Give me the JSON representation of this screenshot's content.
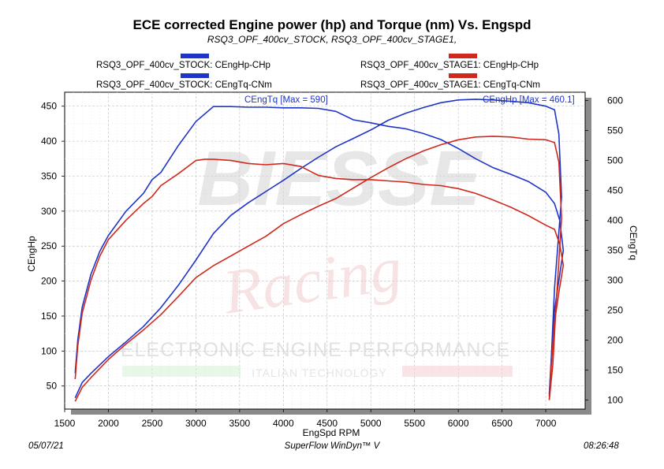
{
  "header": {
    "title": "ECE corrected Engine power (hp) and Torque (nm) Vs. Engspd",
    "subtitle": "RSQ3_OPF_400cv_STOCK, RSQ3_OPF_400cv_STAGE1,"
  },
  "legend": [
    {
      "label": "RSQ3_OPF_400cv_STOCK: CEngHp-CHp",
      "color": "#1f35c8"
    },
    {
      "label": "RSQ3_OPF_400cv_STOCK: CEngTq-CNm",
      "color": "#1f35c8"
    },
    {
      "label": "RSQ3_OPF_400cv_STAGE1: CEngHp-CHp",
      "color": "#d0281c"
    },
    {
      "label": "RSQ3_OPF_400cv_STAGE1: CEngTq-CNm",
      "color": "#d0281c"
    }
  ],
  "footer": {
    "date": "05/07/21",
    "software": "SuperFlow WinDyn™ V",
    "time": "08:26:48"
  },
  "watermark": {
    "brand": "BIESSE",
    "script": "Racing",
    "line1": "ELECTRONIC ENGINE PERFORMANCE",
    "line2": "ITALIAN TECHNOLOGY"
  },
  "chart_data": {
    "type": "line",
    "xlabel": "EngSpd RPM",
    "ylabel": "CEngHp",
    "y2label": "CEngTq",
    "xlim": [
      1500,
      7450
    ],
    "ylim": [
      17,
      470
    ],
    "y2lim": [
      85,
      614
    ],
    "xticks": [
      1500,
      2000,
      2500,
      3000,
      3500,
      4000,
      4500,
      5000,
      5500,
      6000,
      6500,
      7000
    ],
    "yticks": [
      50,
      100,
      150,
      200,
      250,
      300,
      350,
      400,
      450
    ],
    "y2ticks": [
      100,
      150,
      200,
      250,
      300,
      350,
      400,
      450,
      500,
      550,
      600
    ],
    "grid": true,
    "annotations": [
      {
        "text": "CEngTq [Max = 590]",
        "color": "#1f35c8"
      },
      {
        "text": "CEngHp [Max = 460.1]",
        "color": "#1f35c8"
      }
    ],
    "series": [
      {
        "name": "RSQ3_OPF_400cv_STOCK: CEngHp-CHp",
        "axis": "left",
        "color": "#1f35c8",
        "x": [
          1620,
          1700,
          1800,
          2000,
          2200,
          2400,
          2600,
          2800,
          3000,
          3200,
          3400,
          3600,
          3800,
          4000,
          4200,
          4400,
          4600,
          4800,
          5000,
          5200,
          5400,
          5600,
          5800,
          6000,
          6200,
          6400,
          6600,
          6800,
          7000,
          7100,
          7150,
          7180,
          7100,
          7060,
          7040
        ],
        "y": [
          33,
          55,
          68,
          92,
          113,
          135,
          162,
          194,
          230,
          268,
          294,
          312,
          328,
          344,
          361,
          377,
          392,
          404,
          416,
          430,
          440,
          448,
          455,
          459,
          460,
          459,
          457,
          455,
          450,
          445,
          410,
          320,
          190,
          80,
          35
        ]
      },
      {
        "name": "RSQ3_OPF_400cv_STOCK: CEngTq-CNm",
        "axis": "right",
        "color": "#1f35c8",
        "x": [
          1620,
          1650,
          1700,
          1800,
          1900,
          2000,
          2200,
          2400,
          2500,
          2600,
          2800,
          3000,
          3200,
          3300,
          3400,
          3600,
          3800,
          4000,
          4200,
          4400,
          4600,
          4800,
          5000,
          5200,
          5400,
          5600,
          5800,
          6000,
          6200,
          6400,
          6600,
          6800,
          7000,
          7100,
          7160,
          7200,
          7150,
          7100,
          7060,
          7040
        ],
        "y": [
          145,
          200,
          255,
          310,
          348,
          375,
          415,
          445,
          468,
          480,
          525,
          565,
          590,
          590,
          590,
          589,
          589,
          588,
          588,
          587,
          582,
          568,
          563,
          557,
          553,
          545,
          535,
          520,
          503,
          488,
          477,
          465,
          447,
          428,
          400,
          350,
          300,
          250,
          160,
          110
        ]
      },
      {
        "name": "RSQ3_OPF_400cv_STAGE1: CEngHp-CHp",
        "axis": "left",
        "color": "#d0281c",
        "x": [
          1620,
          1700,
          1800,
          2000,
          2200,
          2400,
          2600,
          2800,
          3000,
          3200,
          3400,
          3600,
          3800,
          4000,
          4200,
          4400,
          4600,
          4800,
          5000,
          5200,
          5400,
          5600,
          5800,
          6000,
          6200,
          6400,
          6600,
          6800,
          7000,
          7100,
          7150,
          7180,
          7120,
          7080,
          7040
        ],
        "y": [
          28,
          48,
          62,
          88,
          110,
          130,
          152,
          178,
          205,
          222,
          236,
          250,
          264,
          282,
          295,
          307,
          318,
          333,
          348,
          362,
          375,
          386,
          395,
          402,
          406,
          407,
          406,
          403,
          402,
          398,
          370,
          290,
          170,
          80,
          30
        ]
      },
      {
        "name": "RSQ3_OPF_400cv_STAGE1: CEngTq-CNm",
        "axis": "right",
        "color": "#d0281c",
        "x": [
          1620,
          1650,
          1700,
          1800,
          1900,
          2000,
          2200,
          2400,
          2500,
          2600,
          2800,
          3000,
          3100,
          3200,
          3400,
          3600,
          3800,
          4000,
          4200,
          4400,
          4600,
          4800,
          5000,
          5200,
          5400,
          5600,
          5800,
          6000,
          6200,
          6400,
          6600,
          6800,
          7000,
          7100,
          7160,
          7200,
          7150,
          7100,
          7060,
          7040
        ],
        "y": [
          135,
          190,
          245,
          300,
          340,
          368,
          400,
          428,
          440,
          458,
          478,
          500,
          502,
          502,
          500,
          495,
          493,
          495,
          490,
          475,
          470,
          468,
          468,
          466,
          464,
          460,
          458,
          453,
          445,
          434,
          422,
          408,
          392,
          385,
          360,
          325,
          280,
          230,
          150,
          100
        ]
      }
    ]
  }
}
